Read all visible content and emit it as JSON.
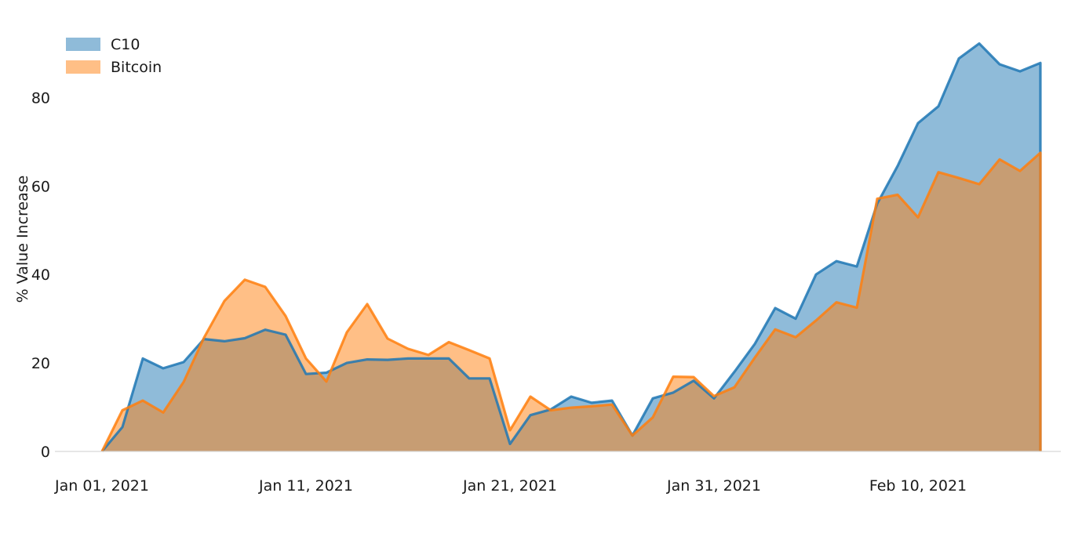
{
  "chart_data": {
    "type": "area",
    "title": "",
    "xlabel": "",
    "ylabel": "% Value Increase",
    "x_start": "2021-01-01",
    "x_end": "2021-02-18",
    "x_ticks": [
      {
        "date": "2021-01-01",
        "label": "Jan 01, 2021"
      },
      {
        "date": "2021-01-11",
        "label": "Jan 11, 2021"
      },
      {
        "date": "2021-01-21",
        "label": "Jan 21, 2021"
      },
      {
        "date": "2021-01-31",
        "label": "Jan 31, 2021"
      },
      {
        "date": "2021-02-10",
        "label": "Feb 10, 2021"
      }
    ],
    "ylim": [
      0,
      96
    ],
    "y_ticks": [
      0,
      20,
      40,
      60,
      80
    ],
    "grid": false,
    "legend_position": "top-left",
    "series": [
      {
        "name": "C10",
        "color": "#1f77b4",
        "values": [
          0.0,
          5.5,
          21.0,
          18.8,
          20.2,
          25.4,
          24.9,
          25.6,
          27.5,
          26.4,
          17.5,
          17.8,
          20.0,
          20.8,
          20.7,
          21.0,
          21.0,
          21.0,
          16.5,
          16.5,
          1.7,
          8.2,
          9.5,
          12.4,
          11.0,
          11.5,
          3.6,
          12.0,
          13.3,
          16.0,
          12.0,
          18.0,
          24.3,
          32.4,
          30.0,
          40.0,
          43.0,
          41.8,
          56.0,
          64.5,
          74.2,
          78.0,
          88.8,
          92.2,
          87.5,
          85.9,
          87.8
        ]
      },
      {
        "name": "Bitcoin",
        "color": "#ff7f0e",
        "values": [
          0.0,
          9.3,
          11.5,
          8.8,
          15.7,
          25.7,
          34.0,
          38.8,
          37.2,
          30.6,
          21.0,
          15.8,
          26.9,
          33.3,
          25.5,
          23.2,
          21.8,
          24.7,
          22.9,
          21.0,
          4.8,
          12.4,
          9.3,
          9.9,
          10.2,
          10.6,
          3.6,
          7.7,
          16.9,
          16.8,
          12.5,
          14.5,
          21.2,
          27.6,
          25.8,
          29.6,
          33.7,
          32.5,
          57.1,
          58.0,
          52.9,
          63.1,
          61.8,
          60.4,
          66.0,
          63.4,
          67.5
        ]
      }
    ]
  }
}
